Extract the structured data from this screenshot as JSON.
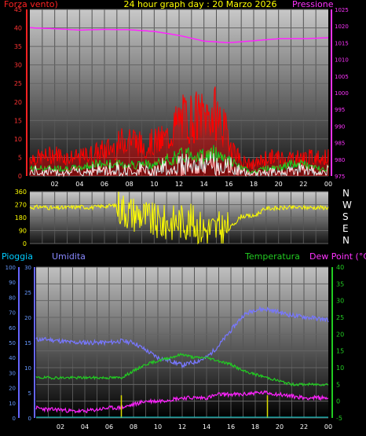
{
  "header": {
    "wind_label": "Forza vento)",
    "title": "24 hour graph day : 20 Marzo 2026",
    "pressure_label": "Pressione"
  },
  "middle": {
    "compass": [
      "N",
      "W",
      "S",
      "E",
      "N"
    ]
  },
  "bottom_header": {
    "rain_label": "Pioggia",
    "humidity_label": "Umidita",
    "temp_label": "Temperatura",
    "dew_label": "Dew Point (°C)"
  },
  "colors": {
    "wind": "#ff0000",
    "gust": "#ff0000",
    "wind_avg": "#22cc22",
    "wind_white": "#ffffff",
    "pressure": "#ff22ff",
    "direction": "#ffff00",
    "humidity": "#7777ff",
    "temperature": "#22cc22",
    "dewpoint": "#ff22ff",
    "rain": "#dddd00"
  },
  "chart_data": [
    {
      "type": "line",
      "title": "24 hour graph day : 20 Marzo 2026",
      "xlabel": "",
      "ylabel": "Forza vento)",
      "x_ticks": [
        "02",
        "04",
        "06",
        "08",
        "10",
        "12",
        "14",
        "16",
        "18",
        "20",
        "22",
        "00"
      ],
      "left_axis": {
        "label": "Forza vento)",
        "ticks": [
          0,
          5,
          10,
          15,
          20,
          25,
          30,
          35,
          40,
          45
        ],
        "ylim": [
          0,
          45
        ]
      },
      "right_axis": {
        "label": "Pressione",
        "ticks": [
          975,
          980,
          985,
          990,
          995,
          1000,
          1005,
          1010,
          1015,
          1020,
          1025
        ],
        "ylim": [
          975,
          1025
        ]
      },
      "series": [
        {
          "name": "Pressione",
          "axis": "right",
          "x_hours": [
            0,
            2,
            4,
            6,
            8,
            10,
            12,
            14,
            16,
            18,
            20,
            22,
            24
          ],
          "values": [
            1019.5,
            1019.2,
            1018.8,
            1019.0,
            1018.9,
            1018.4,
            1017.2,
            1015.5,
            1015.0,
            1015.6,
            1016.2,
            1016.2,
            1016.5
          ]
        },
        {
          "name": "",
          "axis": "left",
          "x_hours": [
            0,
            1,
            2,
            3,
            4,
            5,
            6,
            7,
            8,
            9,
            10,
            11,
            12,
            13,
            14,
            15,
            16,
            17,
            18,
            19,
            20,
            21,
            22,
            23,
            24
          ],
          "values": [
            5,
            5,
            6,
            5,
            5,
            6,
            7,
            8,
            11,
            8,
            9,
            10,
            15,
            16,
            16,
            17,
            10,
            4,
            3,
            5,
            5,
            5,
            5,
            5,
            5
          ]
        },
        {
          "name": "",
          "axis": "left",
          "x_hours": [
            0,
            1,
            2,
            3,
            4,
            5,
            6,
            7,
            8,
            9,
            10,
            11,
            12,
            13,
            14,
            15,
            16,
            17,
            18,
            19,
            20,
            21,
            22,
            23,
            24
          ],
          "values": [
            2,
            2,
            2,
            2,
            2,
            3,
            3,
            3,
            3,
            3,
            3,
            4,
            5,
            6,
            5,
            6,
            4,
            2,
            1,
            2,
            2,
            3,
            3,
            2,
            2
          ]
        }
      ],
      "grid": true
    },
    {
      "type": "line",
      "x_ticks": [],
      "left_axis": {
        "ticks": [
          0,
          90,
          180,
          270,
          360
        ],
        "ylim": [
          0,
          360
        ]
      },
      "right_axis": {
        "ticks": [
          "N",
          "W",
          "S",
          "E",
          "N"
        ]
      },
      "series": [
        {
          "name": "",
          "x_hours": [
            0,
            1,
            2,
            3,
            4,
            5,
            6,
            7,
            8,
            9,
            10,
            11,
            12,
            13,
            14,
            15,
            16,
            17,
            18,
            19,
            20,
            21,
            22,
            23,
            24
          ],
          "values": [
            250,
            255,
            245,
            250,
            255,
            250,
            260,
            265,
            220,
            200,
            150,
            140,
            160,
            150,
            100,
            100,
            100,
            190,
            190,
            245,
            245,
            250,
            250,
            250,
            250
          ]
        }
      ],
      "grid": true
    },
    {
      "type": "line",
      "x_ticks": [
        "02",
        "04",
        "06",
        "08",
        "10",
        "12",
        "14",
        "16",
        "18",
        "20",
        "22",
        "00"
      ],
      "left_axis_outer": {
        "label": "Pioggia",
        "ticks": [
          0,
          10,
          20,
          30,
          40,
          50,
          60,
          70,
          80,
          90,
          100
        ],
        "ylim": [
          0,
          100
        ]
      },
      "left_axis_inner": {
        "label": "Umidita",
        "ticks": [
          0,
          5,
          10,
          15,
          20,
          25,
          30
        ],
        "ylim": [
          0,
          30
        ]
      },
      "right_axis": {
        "label": "Temperatura / Dew Point (°C)",
        "ticks": [
          -5,
          0,
          5,
          10,
          15,
          20,
          25,
          30,
          35,
          40
        ],
        "ylim": [
          -5,
          40
        ]
      },
      "series": [
        {
          "name": "Umidita",
          "axis": "humidity",
          "x_hours": [
            0,
            1,
            2,
            3,
            4,
            5,
            6,
            7,
            8,
            9,
            10,
            11,
            12,
            13,
            14,
            15,
            16,
            17,
            18,
            19,
            20,
            21,
            22,
            23,
            24
          ],
          "values": [
            52,
            52,
            51,
            50,
            50,
            50,
            50,
            51,
            50,
            45,
            40,
            38,
            35,
            37,
            40,
            48,
            58,
            68,
            72,
            72,
            70,
            68,
            67,
            66,
            65
          ]
        },
        {
          "name": "Temperatura",
          "axis": "temp",
          "x_hours": [
            0,
            1,
            2,
            3,
            4,
            5,
            6,
            7,
            8,
            9,
            10,
            11,
            12,
            13,
            14,
            15,
            16,
            17,
            18,
            19,
            20,
            21,
            22,
            23,
            24
          ],
          "values": [
            7,
            7,
            7,
            7,
            7,
            7,
            7,
            7,
            9,
            11,
            12,
            13,
            14,
            13,
            13,
            12,
            11,
            9,
            8,
            7,
            6,
            5,
            5,
            5,
            5
          ]
        },
        {
          "name": "Dew Point (°C)",
          "axis": "temp",
          "x_hours": [
            0,
            1,
            2,
            3,
            4,
            5,
            6,
            7,
            8,
            9,
            10,
            11,
            12,
            13,
            14,
            15,
            16,
            17,
            18,
            19,
            20,
            21,
            22,
            23,
            24
          ],
          "values": [
            -2,
            -2.5,
            -2.5,
            -3,
            -3,
            -2.5,
            -2,
            -2,
            -1,
            0,
            0,
            0.5,
            1,
            1,
            1,
            2,
            2,
            2,
            2.5,
            2.5,
            2,
            1.5,
            1,
            1,
            1
          ]
        },
        {
          "name": "Pioggia",
          "axis": "rain",
          "x_hours": [
            7.0,
            19.0
          ],
          "values": [
            3,
            3
          ]
        }
      ],
      "grid": true
    }
  ]
}
